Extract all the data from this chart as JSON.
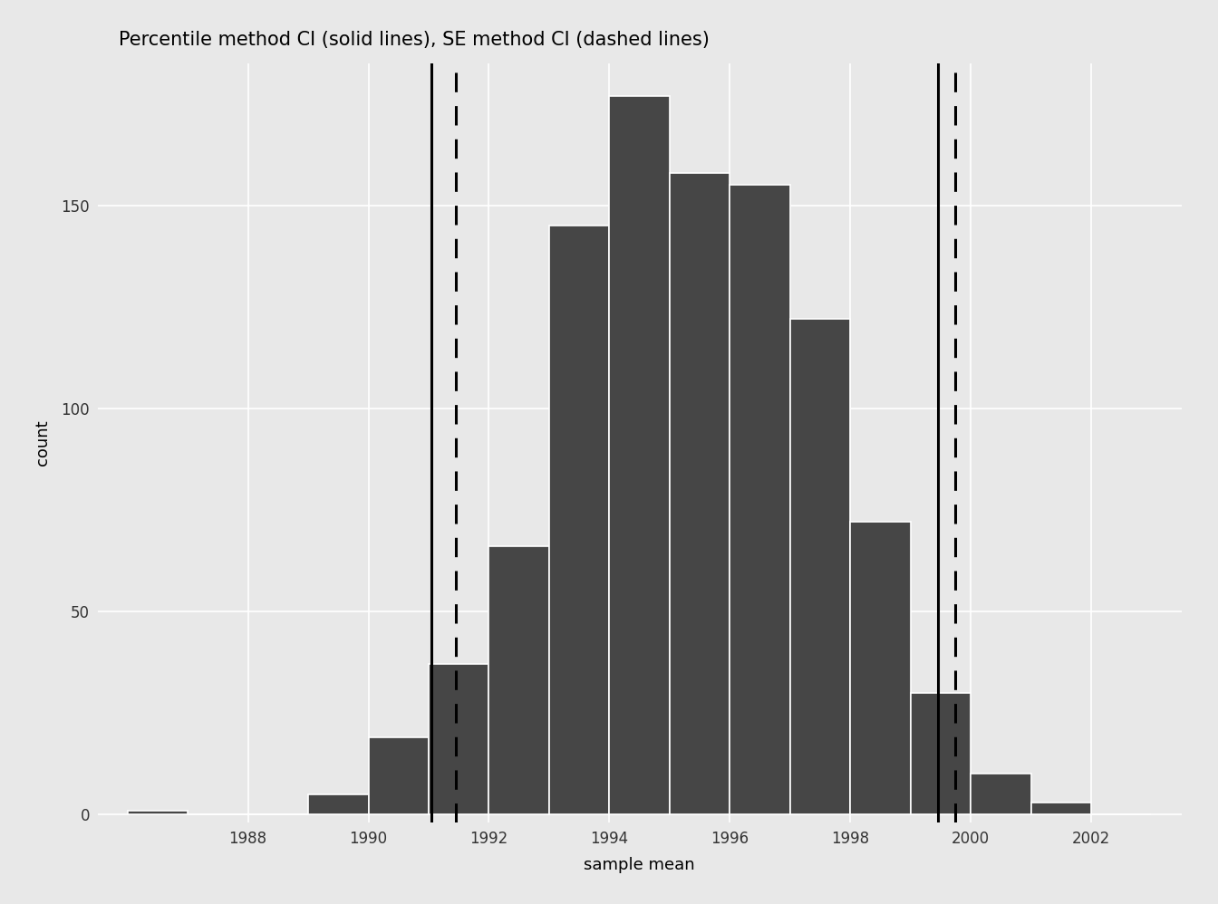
{
  "title": "Percentile method CI (solid lines), SE method CI (dashed lines)",
  "xlabel": "sample mean",
  "ylabel": "count",
  "background_color": "#e8e8e8",
  "panel_background": "#e8e8e8",
  "bar_color": "#464646",
  "bar_edge_color": "white",
  "bar_centers": [
    1986.5,
    1987.5,
    1988.5,
    1989.5,
    1990.5,
    1991.5,
    1992.5,
    1993.5,
    1994.5,
    1995.5,
    1996.5,
    1997.5,
    1998.5,
    1999.5,
    2000.5,
    2001.5,
    2002.5
  ],
  "bar_heights": [
    1,
    0,
    0,
    5,
    19,
    37,
    66,
    145,
    177,
    158,
    155,
    122,
    72,
    30,
    10,
    3,
    0
  ],
  "bin_width": 1,
  "xlim": [
    1985.5,
    2003.5
  ],
  "ylim": [
    -2,
    185
  ],
  "yticks": [
    0,
    50,
    100,
    150
  ],
  "xticks": [
    1988,
    1990,
    1992,
    1994,
    1996,
    1998,
    2000,
    2002
  ],
  "solid_line_1": 1991.05,
  "solid_line_2": 1999.45,
  "dashed_line_1": 1991.45,
  "dashed_line_2": 1999.75,
  "vline_color": "black",
  "vline_lw_solid": 2.2,
  "vline_lw_dashed": 2.2,
  "grid_color": "white",
  "grid_lw": 1.2,
  "title_fontsize": 15,
  "axis_label_fontsize": 13,
  "tick_fontsize": 12
}
